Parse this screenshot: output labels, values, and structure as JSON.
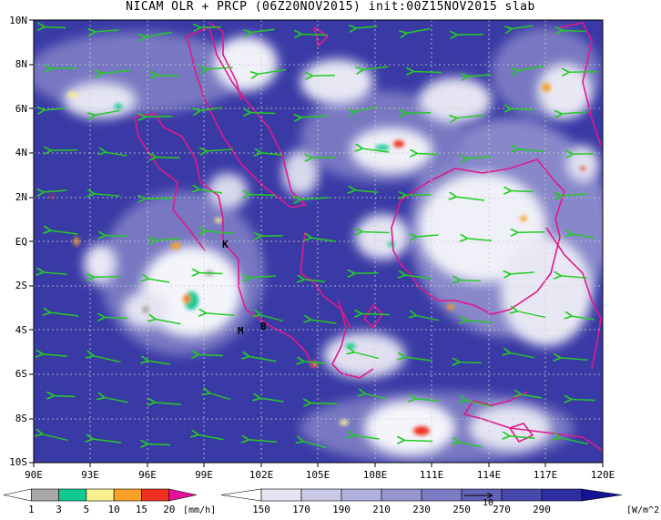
{
  "title": "NICAM OLR + PRCP (06Z20NOV2015) init:00Z15NOV2015 slab",
  "map": {
    "lat_labels": [
      "10N",
      "8N",
      "6N",
      "4N",
      "2N",
      "EQ",
      "2S",
      "4S",
      "6S",
      "8S",
      "10S"
    ],
    "lon_labels": [
      "90E",
      "93E",
      "96E",
      "99E",
      "102E",
      "105E",
      "108E",
      "111E",
      "114E",
      "117E",
      "120E"
    ],
    "site_labels": [
      "K",
      "M",
      "B"
    ],
    "grid": "dotted",
    "wind_arrow_color": "#22cc22",
    "coastline_color": "#e0198a"
  },
  "precip_legend": {
    "unit": "[mm/h]",
    "ticks": [
      "1",
      "3",
      "5",
      "10",
      "15",
      "20"
    ],
    "colors": [
      "#ffffff",
      "#a8a8a8",
      "#10c890",
      "#f8f090",
      "#f8a028",
      "#f03020",
      "#e8109a"
    ]
  },
  "olr_legend": {
    "unit": "[W/m^2]",
    "ticks": [
      "150",
      "170",
      "190",
      "210",
      "230",
      "250",
      "270",
      "290"
    ],
    "colors": [
      "#ffffff",
      "#e4e4f2",
      "#cacae8",
      "#b0b0dc",
      "#9696d0",
      "#7c7cc4",
      "#6262b8",
      "#4848ac",
      "#2e2ea0",
      "#141492"
    ]
  },
  "vector_legend": {
    "value": "10"
  }
}
